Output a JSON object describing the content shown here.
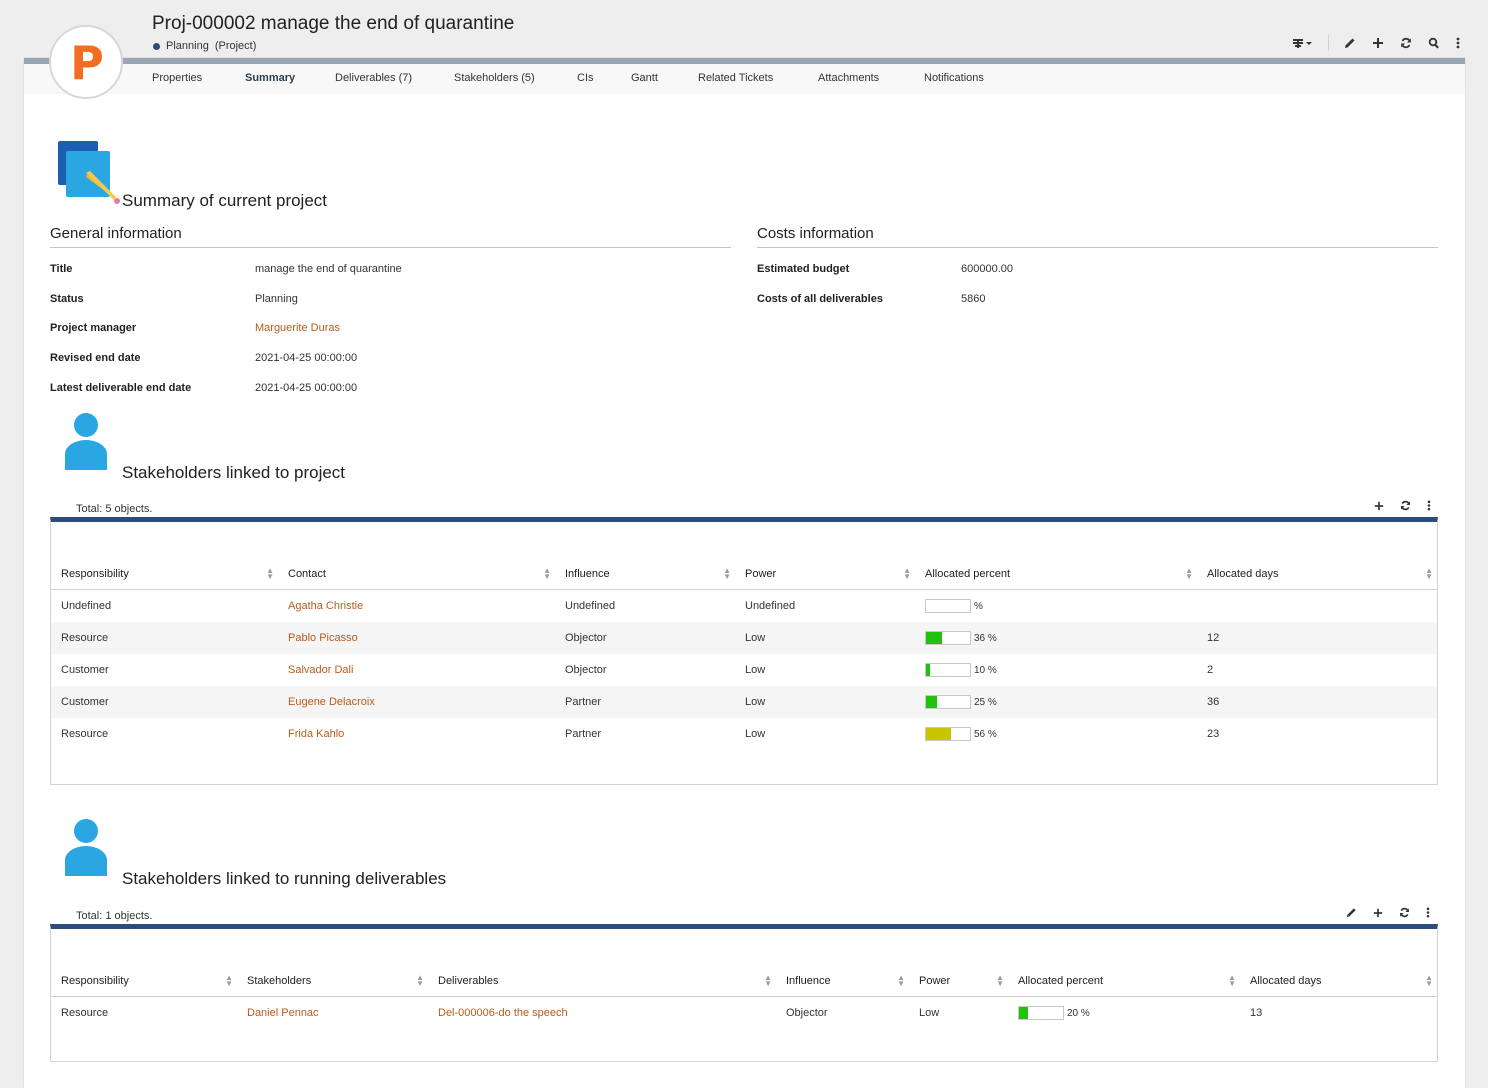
{
  "header": {
    "title": "Proj-000002 manage the end of quarantine",
    "status": "Planning",
    "type": "(Project)",
    "logo_letter": "P"
  },
  "tabs": [
    {
      "label": "Properties"
    },
    {
      "label": "Summary",
      "active": true
    },
    {
      "label": "Deliverables (7)"
    },
    {
      "label": "Stakeholders (5)"
    },
    {
      "label": "CIs"
    },
    {
      "label": "Gantt"
    },
    {
      "label": "Related Tickets"
    },
    {
      "label": "Attachments"
    },
    {
      "label": "Notifications"
    }
  ],
  "summary": {
    "heading": "Summary of current project"
  },
  "general": {
    "title": "General information",
    "fields": [
      {
        "label": "Title",
        "value": "manage the end of quarantine"
      },
      {
        "label": "Status",
        "value": "Planning"
      },
      {
        "label": "Project manager",
        "value": "Marguerite Duras"
      },
      {
        "label": "Revised end date",
        "value": "2021-04-25 00:00:00"
      },
      {
        "label": "Latest deliverable end date",
        "value": "2021-04-25 00:00:00"
      }
    ]
  },
  "costs": {
    "title": "Costs information",
    "fields": [
      {
        "label": "Estimated budget",
        "value": "600000.00"
      },
      {
        "label": "Costs of all deliverables",
        "value": "5860"
      }
    ]
  },
  "project_stakeholders": {
    "heading": "Stakeholders linked to project",
    "total": "Total: 5 objects.",
    "columns": [
      "Responsibility",
      "Contact",
      "Influence",
      "Power",
      "Allocated percent",
      "Allocated days"
    ],
    "rows": [
      {
        "responsibility": "Undefined",
        "contact": "Agatha Christie",
        "influence": "Undefined",
        "power": "Undefined",
        "percent": null,
        "percent_label": "%",
        "days": ""
      },
      {
        "responsibility": "Resource",
        "contact": "Pablo Picasso",
        "influence": "Objector",
        "power": "Low",
        "percent": 36,
        "percent_label": "36 %",
        "days": "12"
      },
      {
        "responsibility": "Customer",
        "contact": "Salvador Dali",
        "influence": "Objector",
        "power": "Low",
        "percent": 10,
        "percent_label": "10 %",
        "days": "2"
      },
      {
        "responsibility": "Customer",
        "contact": "Eugene Delacroix",
        "influence": "Partner",
        "power": "Low",
        "percent": 25,
        "percent_label": "25 %",
        "days": "36"
      },
      {
        "responsibility": "Resource",
        "contact": "Frida Kahlo",
        "influence": "Partner",
        "power": "Low",
        "percent": 56,
        "percent_label": "56 %",
        "days": "23"
      }
    ]
  },
  "deliverable_stakeholders": {
    "heading": "Stakeholders linked to running deliverables",
    "total": "Total: 1 objects.",
    "columns": [
      "Responsibility",
      "Stakeholders",
      "Deliverables",
      "Influence",
      "Power",
      "Allocated percent",
      "Allocated days"
    ],
    "rows": [
      {
        "responsibility": "Resource",
        "stakeholder": "Daniel Pennac",
        "deliverable": "Del-000006-do the speech",
        "influence": "Objector",
        "power": "Low",
        "percent": 20,
        "percent_label": "20 %",
        "days": "13"
      }
    ]
  },
  "colors": {
    "accent": "#2c4d79",
    "link": "#b85c1b",
    "bar_green": "#22c10e",
    "bar_yellow": "#c9c400",
    "logo_orange": "#f26c22"
  }
}
